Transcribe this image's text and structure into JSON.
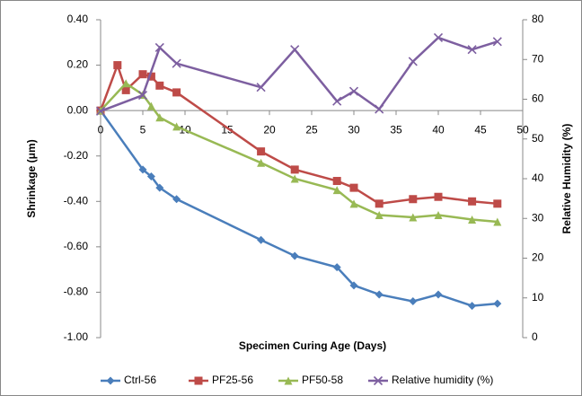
{
  "chart_data": {
    "type": "line",
    "xlabel": "Specimen Curing Age (Days)",
    "ylabel": "Shrinkage (μm)",
    "y2label": "Relative Humidity (%)",
    "xlim": [
      0,
      50
    ],
    "xticks": [
      0,
      5,
      10,
      15,
      20,
      25,
      30,
      35,
      40,
      45,
      50
    ],
    "ylim": [
      -1.0,
      0.4
    ],
    "yticks": [
      {
        "value": 0.4,
        "label": "0.40"
      },
      {
        "value": 0.2,
        "label": "0.20"
      },
      {
        "value": 0,
        "label": "0.00"
      },
      {
        "value": -0.2,
        "label": "-0.20"
      },
      {
        "value": -0.4,
        "label": "-0.40"
      },
      {
        "value": -0.6,
        "label": "-0.60"
      },
      {
        "value": -0.8,
        "label": "-0.80"
      },
      {
        "value": -1.0,
        "label": "-1.00"
      }
    ],
    "y2lim": [
      0,
      80
    ],
    "y2ticks": [
      0,
      10,
      20,
      30,
      40,
      50,
      60,
      70,
      80
    ],
    "legend": "bottom",
    "series": [
      {
        "name": "Ctrl-56",
        "color": "#4a7ebb",
        "marker": "diamond",
        "x": [
          0,
          5,
          6,
          7,
          9,
          19,
          23,
          28,
          30,
          33,
          37,
          40,
          44,
          47
        ],
        "values": [
          0,
          -0.26,
          -0.29,
          -0.34,
          -0.39,
          -0.57,
          -0.64,
          -0.69,
          -0.77,
          -0.81,
          -0.84,
          -0.81,
          -0.86,
          -0.85
        ]
      },
      {
        "name": "PF25-56",
        "color": "#be4b48",
        "marker": "square",
        "x": [
          0,
          2,
          3,
          5,
          6,
          7,
          9,
          19,
          23,
          28,
          30,
          33,
          37,
          40,
          44,
          47
        ],
        "values": [
          0,
          0.2,
          0.09,
          0.16,
          0.15,
          0.11,
          0.08,
          -0.18,
          -0.26,
          -0.31,
          -0.34,
          -0.41,
          -0.39,
          -0.38,
          -0.4,
          -0.41
        ]
      },
      {
        "name": "PF50-58",
        "color": "#98b954",
        "marker": "triangle",
        "x": [
          0,
          3,
          5,
          6,
          7,
          9,
          19,
          23,
          28,
          30,
          33,
          37,
          40,
          44,
          47
        ],
        "values": [
          0,
          0.12,
          0.07,
          0.02,
          -0.03,
          -0.07,
          -0.23,
          -0.3,
          -0.35,
          -0.41,
          -0.46,
          -0.47,
          -0.46,
          -0.48,
          -0.49
        ]
      },
      {
        "name": "Relative humidity (%)",
        "color": "#7d5fa0",
        "marker": "x",
        "axis": "y2",
        "x": [
          0,
          5,
          7,
          9,
          19,
          23,
          28,
          30,
          33,
          37,
          40,
          44,
          47
        ],
        "values": [
          57,
          61,
          73,
          69,
          63,
          72.5,
          59.5,
          62,
          57.5,
          69.5,
          75.5,
          72.5,
          74.5
        ]
      }
    ]
  }
}
